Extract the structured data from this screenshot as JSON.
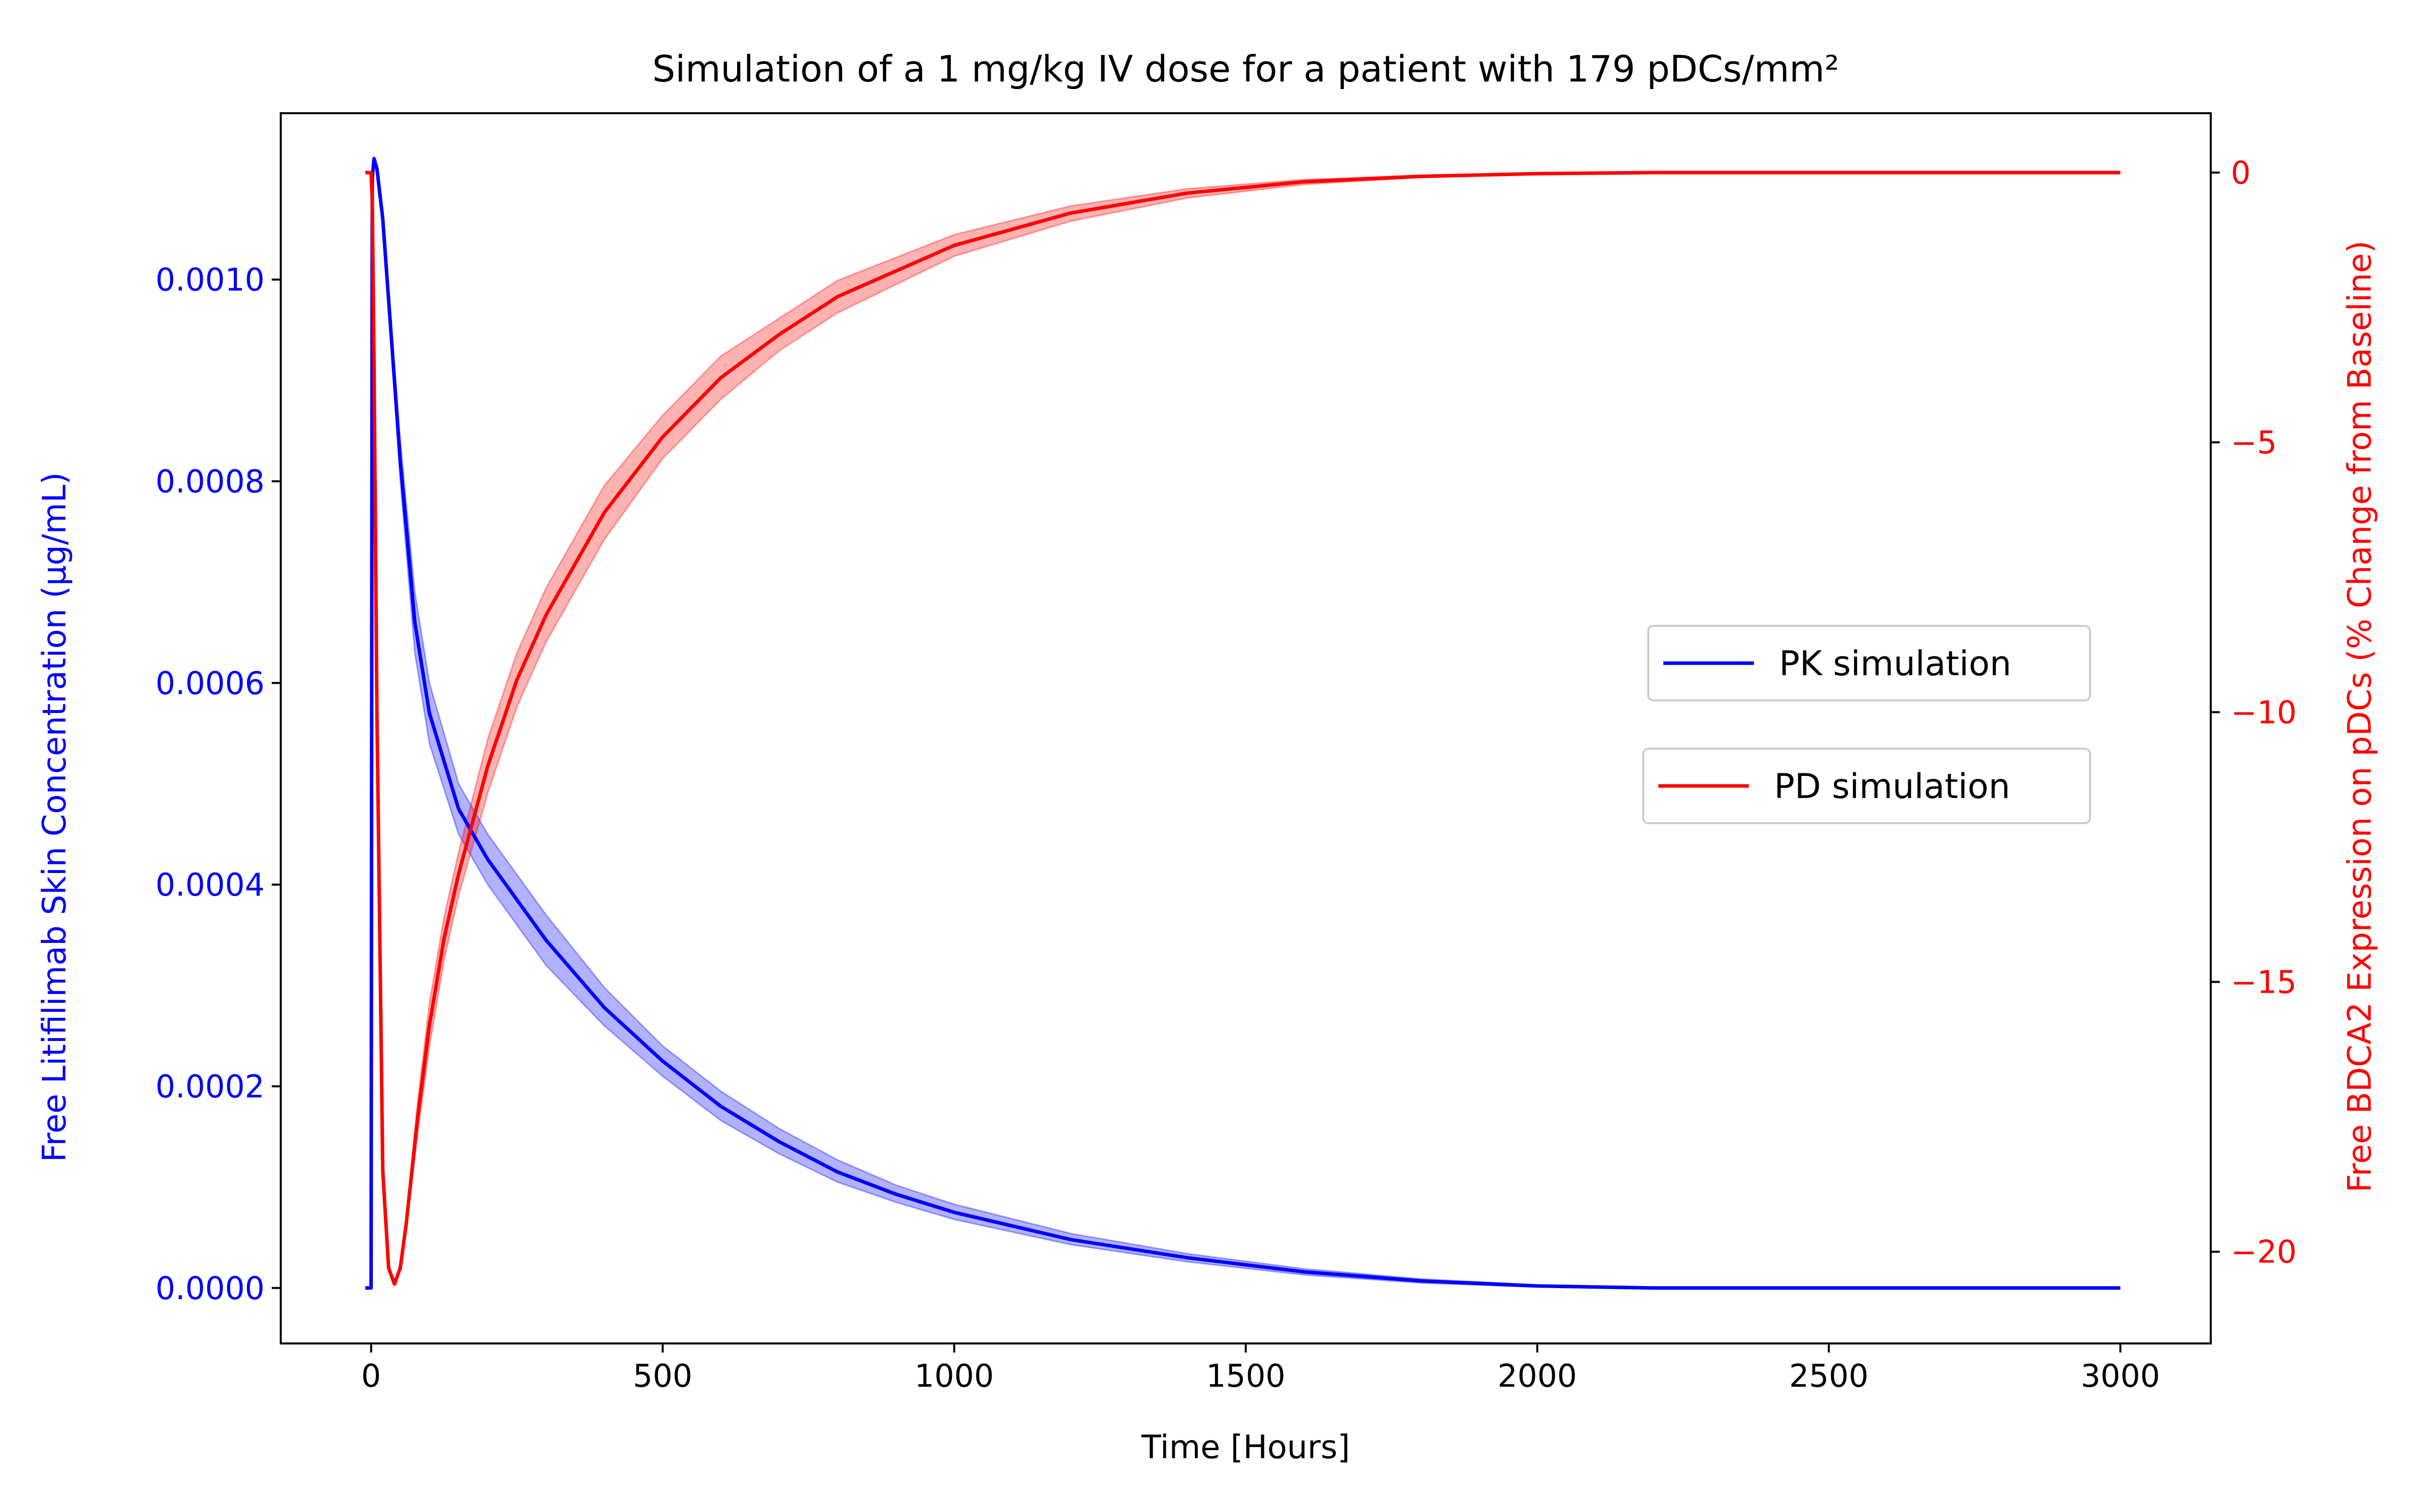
{
  "colors": {
    "pk": "#0000ff",
    "pd": "#ff0000",
    "axis": "#000000",
    "background": "#ffffff"
  },
  "chart_data": {
    "type": "line",
    "title": "Simulation of a 1 mg/kg IV dose for a patient with 179 pDCs/mm²",
    "xlabel": "Time [Hours]",
    "ylabel_left": "Free Litifilimab Skin Concentration (µg/mL)",
    "ylabel_right": "Free BDCA2 Expression on pDCs (% Change from Baseline)",
    "xlim": [
      -155,
      3155
    ],
    "ylim_left": [
      -5.5e-05,
      0.001165
    ],
    "ylim_right": [
      -21.7,
      1.1
    ],
    "xticks": [
      0,
      500,
      1000,
      1500,
      2000,
      2500,
      3000
    ],
    "xtick_labels": [
      "0",
      "500",
      "1000",
      "1500",
      "2000",
      "2500",
      "3000"
    ],
    "yticks_left": [
      0.0,
      0.0002,
      0.0004,
      0.0006,
      0.0008,
      0.001
    ],
    "ytick_labels_left": [
      "0.0000",
      "0.0002",
      "0.0004",
      "0.0006",
      "0.0008",
      "0.0010"
    ],
    "yticks_right": [
      0,
      -5,
      -10,
      -15,
      -20
    ],
    "ytick_labels_right": [
      "0",
      "−5",
      "−10",
      "−15",
      "−20"
    ],
    "legend": [
      {
        "label": "PK simulation",
        "color": "#0000ff"
      },
      {
        "label": "PD simulation",
        "color": "#ff0000"
      }
    ],
    "legend_placement": "center-right",
    "grid": false,
    "series": [
      {
        "name": "PK simulation",
        "axis": "left",
        "color": "#0000ff",
        "x": [
          -10,
          0,
          1,
          2,
          5,
          10,
          20,
          30,
          50,
          75,
          100,
          150,
          200,
          300,
          400,
          500,
          600,
          700,
          800,
          900,
          1000,
          1200,
          1400,
          1600,
          1800,
          2000,
          2200,
          2500,
          3000
        ],
        "y": [
          0.0,
          0.0,
          0.0006,
          0.0011,
          0.00112,
          0.00111,
          0.00106,
          0.00098,
          0.00082,
          0.00066,
          0.00057,
          0.000475,
          0.000425,
          0.000345,
          0.000278,
          0.000225,
          0.00018,
          0.000145,
          0.000115,
          9.3e-05,
          7.5e-05,
          4.8e-05,
          3e-05,
          1.6e-05,
          7e-06,
          2e-06,
          0.0,
          0.0,
          0.0
        ],
        "lower": [
          0.0,
          0.0,
          0.0006,
          0.0011,
          0.00112,
          0.00111,
          0.00105,
          0.00097,
          0.0008,
          0.00063,
          0.00054,
          0.00045,
          0.0004,
          0.00032,
          0.00026,
          0.00021,
          0.000166,
          0.000133,
          0.000105,
          8.5e-05,
          6.8e-05,
          4.3e-05,
          2.6e-05,
          1.3e-05,
          5e-06,
          1e-06,
          0.0,
          0.0,
          0.0
        ],
        "upper": [
          0.0,
          0.0,
          0.0006,
          0.0011,
          0.00112,
          0.00111,
          0.00107,
          0.00099,
          0.00084,
          0.00069,
          0.0006,
          0.0005,
          0.00045,
          0.00037,
          0.000298,
          0.00024,
          0.000195,
          0.000158,
          0.000127,
          0.000102,
          8.3e-05,
          5.4e-05,
          3.4e-05,
          1.9e-05,
          9e-06,
          3e-06,
          0.0,
          0.0,
          0.0
        ]
      },
      {
        "name": "PD simulation",
        "axis": "right",
        "color": "#ff0000",
        "x": [
          -10,
          0,
          2,
          5,
          10,
          20,
          30,
          40,
          50,
          60,
          80,
          100,
          125,
          150,
          200,
          250,
          300,
          400,
          500,
          600,
          700,
          800,
          1000,
          1200,
          1400,
          1600,
          1800,
          2000,
          2200,
          2500,
          3000
        ],
        "y": [
          0.0,
          0.0,
          -0.5,
          -3.5,
          -10.0,
          -18.5,
          -20.3,
          -20.6,
          -20.3,
          -19.5,
          -17.5,
          -15.8,
          -14.2,
          -13.0,
          -11.0,
          -9.4,
          -8.2,
          -6.3,
          -4.9,
          -3.8,
          -3.0,
          -2.3,
          -1.35,
          -0.75,
          -0.38,
          -0.17,
          -0.07,
          -0.02,
          0.0,
          0.0,
          0.0
        ],
        "lower": [
          0.0,
          0.0,
          -0.5,
          -3.5,
          -10.0,
          -18.5,
          -20.3,
          -20.6,
          -20.3,
          -19.6,
          -17.8,
          -16.2,
          -14.6,
          -13.4,
          -11.5,
          -9.9,
          -8.7,
          -6.8,
          -5.3,
          -4.2,
          -3.3,
          -2.6,
          -1.55,
          -0.9,
          -0.47,
          -0.22,
          -0.09,
          -0.03,
          0.0,
          0.0,
          0.0
        ],
        "upper": [
          0.0,
          0.0,
          -0.5,
          -3.5,
          -10.0,
          -18.5,
          -20.3,
          -20.6,
          -20.2,
          -19.4,
          -17.2,
          -15.4,
          -13.8,
          -12.6,
          -10.5,
          -8.9,
          -7.7,
          -5.8,
          -4.5,
          -3.4,
          -2.7,
          -2.0,
          -1.15,
          -0.62,
          -0.3,
          -0.13,
          -0.05,
          -0.01,
          0.0,
          0.0,
          0.0
        ]
      }
    ]
  }
}
